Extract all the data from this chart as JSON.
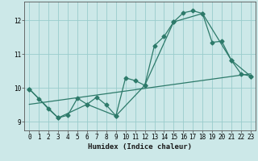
{
  "xlabel": "Humidex (Indice chaleur)",
  "bg_color": "#cce8e8",
  "grid_color": "#99cccc",
  "line_color": "#2d7a6a",
  "xlim": [
    -0.5,
    23.5
  ],
  "ylim": [
    8.75,
    12.55
  ],
  "yticks": [
    9,
    10,
    11,
    12
  ],
  "xticks": [
    0,
    1,
    2,
    3,
    4,
    5,
    6,
    7,
    8,
    9,
    10,
    11,
    12,
    13,
    14,
    15,
    16,
    17,
    18,
    19,
    20,
    21,
    22,
    23
  ],
  "line1_x": [
    0,
    1,
    2,
    3,
    4,
    5,
    6,
    7,
    8,
    9,
    10,
    11,
    12,
    13,
    14,
    15,
    16,
    17,
    18,
    19,
    20,
    21,
    22,
    23
  ],
  "line1_y": [
    9.97,
    9.68,
    9.38,
    9.12,
    9.2,
    9.7,
    9.52,
    9.73,
    9.5,
    9.18,
    10.3,
    10.22,
    10.08,
    11.25,
    11.52,
    11.95,
    12.22,
    12.28,
    12.2,
    11.35,
    11.38,
    10.82,
    10.42,
    10.35
  ],
  "line2_x": [
    0,
    3,
    6,
    9,
    12,
    15,
    18,
    21,
    23
  ],
  "line2_y": [
    9.97,
    9.12,
    9.52,
    9.18,
    10.08,
    11.95,
    12.2,
    10.82,
    10.35
  ],
  "line3_x": [
    0,
    23
  ],
  "line3_y": [
    9.52,
    10.42
  ],
  "marker": "D",
  "markersize": 2.5,
  "linewidth": 0.9,
  "tick_fontsize": 5.5,
  "xlabel_fontsize": 6.5
}
